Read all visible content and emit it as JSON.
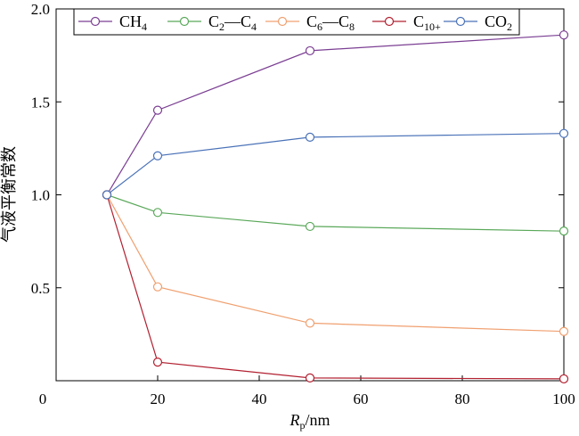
{
  "chart_data": {
    "type": "line",
    "xlabel_main": "R",
    "xlabel_sub": "p",
    "xlabel_unit": "/nm",
    "ylabel": "气液平衡常数",
    "xlim": [
      0,
      100
    ],
    "ylim": [
      0,
      2.0
    ],
    "x_ticks": [
      0,
      20,
      40,
      60,
      80,
      100
    ],
    "x_tick_labels": [
      "0",
      "20",
      "40",
      "60",
      "80",
      "100"
    ],
    "y_ticks": [
      0.5,
      1.0,
      1.5,
      2.0
    ],
    "y_tick_labels": [
      "0.5",
      "1.0",
      "1.5",
      "2.0"
    ],
    "x": [
      10,
      20,
      50,
      100
    ],
    "legend_position": "top",
    "series": [
      {
        "name": "CH4",
        "name_parts": [
          {
            "t": "CH",
            "s": false
          },
          {
            "t": "4",
            "s": true
          }
        ],
        "color": "#7b3f93",
        "values": [
          1.0,
          1.455,
          1.775,
          1.86
        ]
      },
      {
        "name": "C2—C4",
        "name_parts": [
          {
            "t": "C",
            "s": false
          },
          {
            "t": "2",
            "s": true
          },
          {
            "t": "—C",
            "s": false
          },
          {
            "t": "4",
            "s": true
          }
        ],
        "color": "#5aa85a",
        "values": [
          1.0,
          0.905,
          0.83,
          0.805
        ]
      },
      {
        "name": "C6—C8",
        "name_parts": [
          {
            "t": "C",
            "s": false
          },
          {
            "t": "6",
            "s": true
          },
          {
            "t": "—C",
            "s": false
          },
          {
            "t": "8",
            "s": true
          }
        ],
        "color": "#f0a070",
        "values": [
          1.0,
          0.505,
          0.31,
          0.265
        ]
      },
      {
        "name": "C10+",
        "name_parts": [
          {
            "t": "C",
            "s": false
          },
          {
            "t": "10+",
            "s": true
          }
        ],
        "color": "#b22030",
        "values": [
          1.0,
          0.1,
          0.015,
          0.01
        ]
      },
      {
        "name": "CO2",
        "name_parts": [
          {
            "t": "CO",
            "s": false
          },
          {
            "t": "2",
            "s": true
          }
        ],
        "color": "#4a72b8",
        "values": [
          1.0,
          1.21,
          1.31,
          1.33
        ]
      }
    ]
  }
}
